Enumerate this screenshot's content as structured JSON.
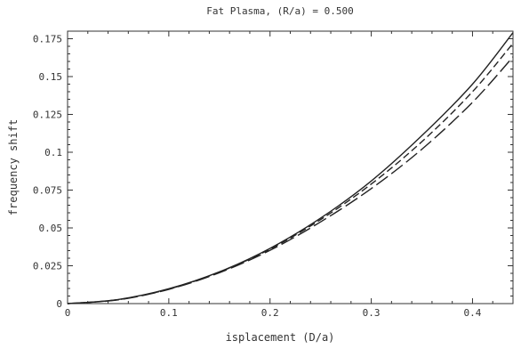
{
  "chart_data": {
    "type": "line",
    "title": "Fat Plasma, (R/a) = 0.500",
    "xlabel": "isplacement (D/a)",
    "ylabel": "frequency shift",
    "xlim": [
      0,
      0.44
    ],
    "ylim": [
      0,
      0.18
    ],
    "x_ticks": [
      0,
      0.1,
      0.2,
      0.3,
      0.4
    ],
    "x_tick_labels": [
      "0",
      "0.1",
      "0.2",
      "0.3",
      "0.4"
    ],
    "y_ticks": [
      0,
      0.025,
      0.05,
      0.075,
      0.1,
      0.125,
      0.15,
      0.175
    ],
    "y_tick_labels": [
      "0",
      "0.025",
      "0.05",
      "0.075",
      "0.1",
      "0.125",
      "0.15",
      "0.175"
    ],
    "grid": false,
    "legend": "none",
    "x": [
      0,
      0.05,
      0.1,
      0.15,
      0.2,
      0.25,
      0.3,
      0.35,
      0.4,
      0.44
    ],
    "series": [
      {
        "style": "solid",
        "values": [
          0,
          0.0027,
          0.0098,
          0.021,
          0.0365,
          0.0565,
          0.081,
          0.111,
          0.145,
          0.179
        ]
      },
      {
        "style": "short-dash",
        "values": [
          0,
          0.0026,
          0.0096,
          0.0208,
          0.036,
          0.0555,
          0.079,
          0.107,
          0.14,
          0.172
        ]
      },
      {
        "style": "long-dash",
        "values": [
          0,
          0.0025,
          0.0094,
          0.0204,
          0.0352,
          0.054,
          0.076,
          0.102,
          0.133,
          0.163
        ]
      }
    ]
  }
}
